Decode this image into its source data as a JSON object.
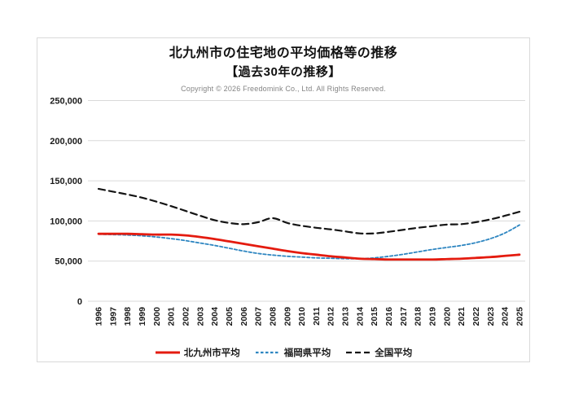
{
  "chart_data": {
    "type": "line",
    "title": "北九州市の住宅地の平均価格等の推移",
    "subtitle": "【過去30年の推移】",
    "copyright": "Copyright © 2026 Freedomink Co., Ltd. All Rights Reserved.",
    "x": [
      1996,
      1997,
      1998,
      1999,
      2000,
      2001,
      2002,
      2003,
      2004,
      2005,
      2006,
      2007,
      2008,
      2009,
      2010,
      2011,
      2012,
      2013,
      2014,
      2015,
      2016,
      2017,
      2018,
      2019,
      2020,
      2021,
      2022,
      2023,
      2024,
      2025
    ],
    "ylim": [
      0,
      250000
    ],
    "y_ticks": [
      {
        "label": "0",
        "value": 0
      },
      {
        "label": "50,000",
        "value": 50000
      },
      {
        "label": "100,000",
        "value": 100000
      },
      {
        "label": "150,000",
        "value": 150000
      },
      {
        "label": "200,000",
        "value": 200000
      },
      {
        "label": "250,000",
        "value": 250000
      }
    ],
    "grid": "horizontal",
    "grid_color": "#d9d9d9",
    "legend_position": "bottom",
    "series": [
      {
        "id": "national",
        "name": "全国平均",
        "color": "#141414",
        "style": "dashed-long",
        "values": [
          140000,
          136500,
          133000,
          129000,
          124000,
          118500,
          112500,
          106500,
          101000,
          97500,
          96000,
          98500,
          103500,
          97500,
          94000,
          91500,
          89500,
          87000,
          84500,
          84500,
          86500,
          89000,
          91500,
          93500,
          95500,
          96000,
          98500,
          102000,
          106500,
          111500
        ]
      },
      {
        "id": "fukuoka",
        "name": "福岡県平均",
        "color": "#2e86c1",
        "style": "dashed-short",
        "values": [
          83500,
          83000,
          82500,
          81500,
          80000,
          78000,
          75500,
          72500,
          69500,
          66000,
          62500,
          59500,
          57500,
          56000,
          55000,
          54000,
          53500,
          53000,
          53000,
          54000,
          56000,
          58500,
          61500,
          64500,
          67000,
          69500,
          73000,
          78000,
          85000,
          95000
        ]
      },
      {
        "id": "kitakyushu",
        "name": "北九州市平均",
        "color": "#e41b0f",
        "style": "solid",
        "values": [
          84000,
          84000,
          84000,
          83500,
          83000,
          83000,
          82000,
          80000,
          77500,
          74500,
          71500,
          68500,
          65500,
          62500,
          60000,
          58000,
          56000,
          54500,
          53000,
          52500,
          52000,
          52000,
          52000,
          52000,
          52500,
          53000,
          54000,
          55000,
          56500,
          58000
        ]
      }
    ],
    "legend_order": [
      "kitakyushu",
      "fukuoka",
      "national"
    ]
  }
}
